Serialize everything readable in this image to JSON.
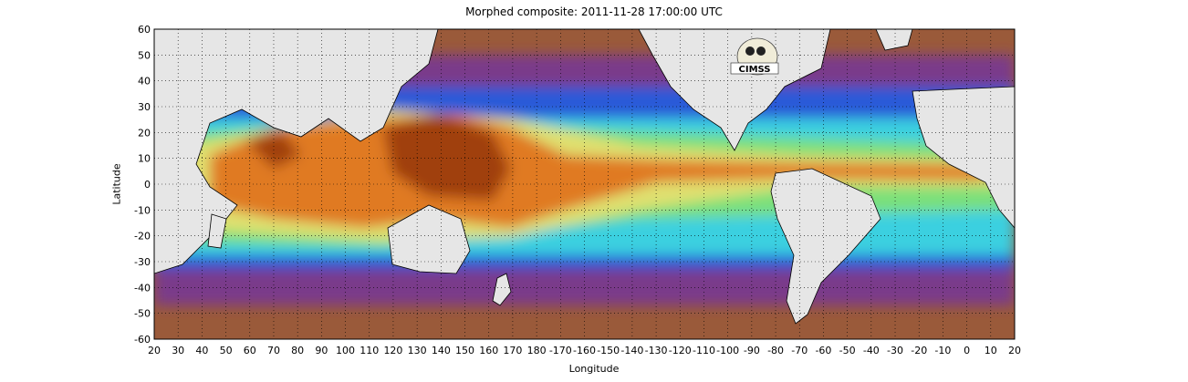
{
  "title": "Morphed composite: 2011-11-28 17:00:00 UTC",
  "xlabel": "Longitude",
  "ylabel": "Latitude",
  "logo_text": "CIMSS",
  "lat_ticks": [
    "60",
    "50",
    "40",
    "30",
    "20",
    "10",
    "0",
    "-10",
    "-20",
    "-30",
    "-40",
    "-50",
    "-60"
  ],
  "lon_ticks": [
    "20",
    "30",
    "40",
    "50",
    "60",
    "70",
    "80",
    "90",
    "100",
    "110",
    "120",
    "130",
    "140",
    "150",
    "160",
    "170",
    "180",
    "-170",
    "-160",
    "-150",
    "-140",
    "-130",
    "-120",
    "-110",
    "-100",
    "-90",
    "-80",
    "-70",
    "-60",
    "-50",
    "-40",
    "-30",
    "-20",
    "-10",
    "0",
    "10",
    "20"
  ],
  "colors": {
    "land": "#e6e6e6",
    "dry": "#9a5a3a",
    "purple": "#7a3a8a",
    "blue": "#2a5ad8",
    "cyan": "#3ad0e0",
    "green": "#7ae07a",
    "yellow": "#e0e070",
    "orange": "#e07a20",
    "wet": "#a04010"
  }
}
